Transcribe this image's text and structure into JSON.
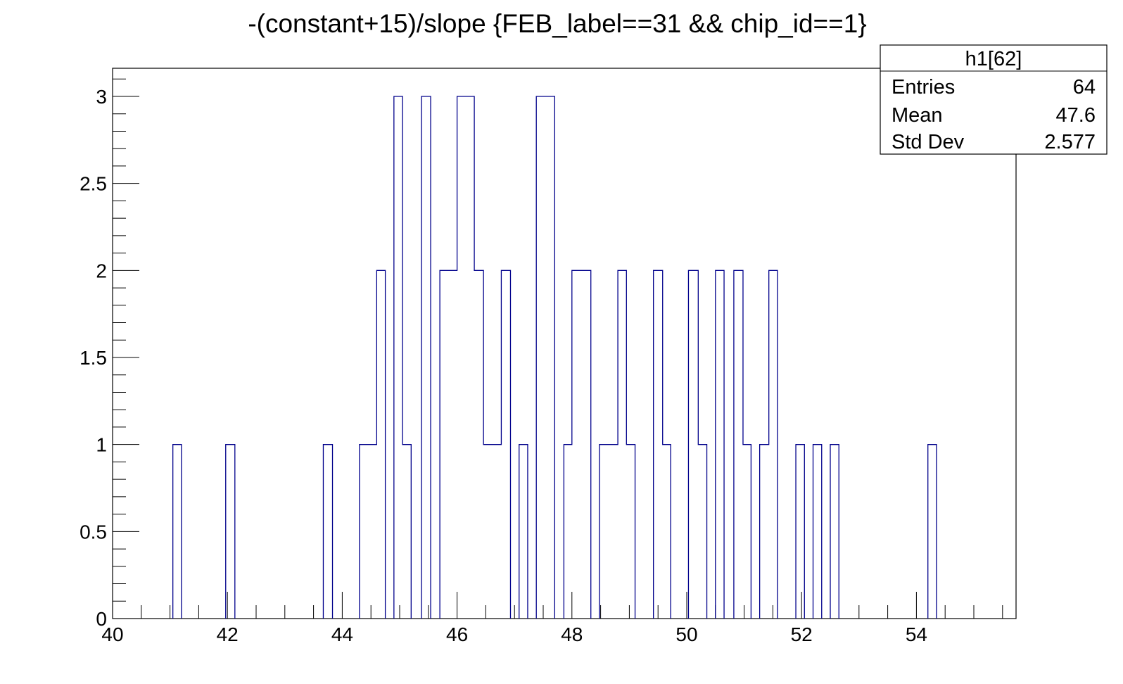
{
  "chart_data": {
    "type": "histogram",
    "title": "-(constant+15)/slope {FEB_label==31 && chip_id==1}",
    "xlabel": "",
    "ylabel": "",
    "xlim": [
      40,
      55.4
    ],
    "ylim": [
      0,
      3.15
    ],
    "x_ticks": [
      "40",
      "42",
      "44",
      "46",
      "48",
      "50",
      "52",
      "54"
    ],
    "y_ticks": [
      "0",
      "0.5",
      "1",
      "1.5",
      "2",
      "2.5",
      "3"
    ],
    "line_color": "#00008b",
    "bins": [
      {
        "x0": 41.05,
        "x1": 41.2,
        "count": 1
      },
      {
        "x0": 41.97,
        "x1": 42.13,
        "count": 1
      },
      {
        "x0": 43.67,
        "x1": 43.83,
        "count": 1
      },
      {
        "x0": 44.3,
        "x1": 44.6,
        "count": 1
      },
      {
        "x0": 44.6,
        "x1": 44.75,
        "count": 2
      },
      {
        "x0": 44.9,
        "x1": 45.05,
        "count": 3
      },
      {
        "x0": 45.05,
        "x1": 45.2,
        "count": 1
      },
      {
        "x0": 45.38,
        "x1": 45.54,
        "count": 3
      },
      {
        "x0": 45.7,
        "x1": 46.0,
        "count": 2
      },
      {
        "x0": 46.0,
        "x1": 46.3,
        "count": 3
      },
      {
        "x0": 46.3,
        "x1": 46.46,
        "count": 2
      },
      {
        "x0": 46.46,
        "x1": 46.77,
        "count": 1
      },
      {
        "x0": 46.77,
        "x1": 46.93,
        "count": 2
      },
      {
        "x0": 47.08,
        "x1": 47.23,
        "count": 1
      },
      {
        "x0": 47.38,
        "x1": 47.7,
        "count": 3
      },
      {
        "x0": 47.86,
        "x1": 48.0,
        "count": 1
      },
      {
        "x0": 48.0,
        "x1": 48.33,
        "count": 2
      },
      {
        "x0": 48.48,
        "x1": 48.8,
        "count": 1
      },
      {
        "x0": 48.8,
        "x1": 48.95,
        "count": 2
      },
      {
        "x0": 48.95,
        "x1": 49.1,
        "count": 1
      },
      {
        "x0": 49.42,
        "x1": 49.58,
        "count": 2
      },
      {
        "x0": 49.58,
        "x1": 49.72,
        "count": 1
      },
      {
        "x0": 50.03,
        "x1": 50.2,
        "count": 2
      },
      {
        "x0": 50.2,
        "x1": 50.35,
        "count": 1
      },
      {
        "x0": 50.5,
        "x1": 50.65,
        "count": 2
      },
      {
        "x0": 50.82,
        "x1": 50.98,
        "count": 2
      },
      {
        "x0": 50.98,
        "x1": 51.12,
        "count": 1
      },
      {
        "x0": 51.27,
        "x1": 51.43,
        "count": 1
      },
      {
        "x0": 51.43,
        "x1": 51.58,
        "count": 2
      },
      {
        "x0": 51.9,
        "x1": 52.05,
        "count": 1
      },
      {
        "x0": 52.2,
        "x1": 52.35,
        "count": 1
      },
      {
        "x0": 52.5,
        "x1": 52.65,
        "count": 1
      },
      {
        "x0": 54.2,
        "x1": 54.35,
        "count": 1
      }
    ],
    "stats_box": {
      "title": "h1[62]",
      "rows": [
        {
          "label": "Entries",
          "value": "64"
        },
        {
          "label": "Mean",
          "value": "47.6"
        },
        {
          "label": "Std Dev",
          "value": "2.577"
        }
      ]
    }
  }
}
